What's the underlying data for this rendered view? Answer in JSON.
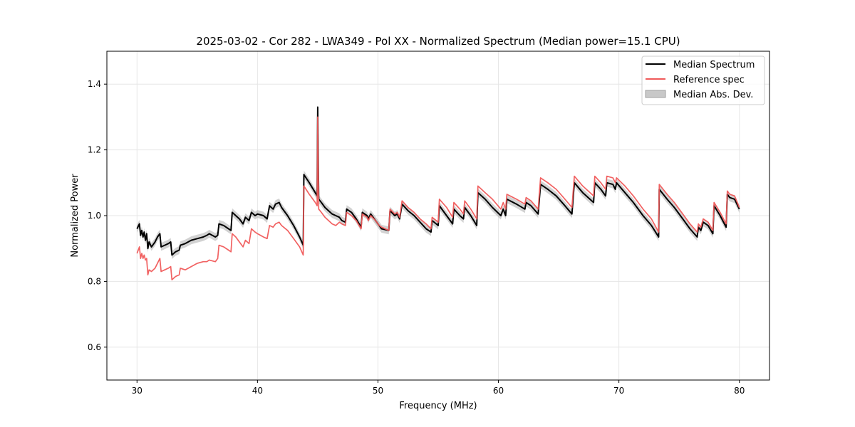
{
  "chart_data": {
    "type": "line",
    "title": "2025-03-02 - Cor 282 - LWA349 - Pol XX - Normalized Spectrum (Median power=15.1 CPU)",
    "xlabel": "Frequency (MHz)",
    "ylabel": "Normalized Power",
    "xlim": [
      27.5,
      82.5
    ],
    "ylim": [
      0.5,
      1.5
    ],
    "xticks": [
      30,
      40,
      50,
      60,
      70,
      80
    ],
    "yticks": [
      0.6,
      0.8,
      1.0,
      1.2,
      1.4
    ],
    "grid": true,
    "legend_position": "top-right",
    "legend": [
      {
        "label": "Median Spectrum",
        "kind": "line",
        "color": "#000000"
      },
      {
        "label": "Reference spec",
        "kind": "line",
        "color": "#f05a5a"
      },
      {
        "label": "Median Abs. Dev.",
        "kind": "patch",
        "color": "#b4b4b4"
      }
    ],
    "series": [
      {
        "name": "Median Spectrum",
        "color": "#000000",
        "points": [
          [
            30.0,
            0.96
          ],
          [
            30.2,
            0.975
          ],
          [
            30.3,
            0.94
          ],
          [
            30.4,
            0.955
          ],
          [
            30.5,
            0.935
          ],
          [
            30.6,
            0.95
          ],
          [
            30.7,
            0.925
          ],
          [
            30.8,
            0.945
          ],
          [
            30.9,
            0.9
          ],
          [
            31.0,
            0.92
          ],
          [
            31.2,
            0.905
          ],
          [
            31.5,
            0.92
          ],
          [
            31.7,
            0.935
          ],
          [
            31.9,
            0.945
          ],
          [
            32.0,
            0.905
          ],
          [
            32.3,
            0.91
          ],
          [
            32.6,
            0.915
          ],
          [
            32.8,
            0.92
          ],
          [
            32.9,
            0.88
          ],
          [
            33.2,
            0.89
          ],
          [
            33.5,
            0.895
          ],
          [
            33.6,
            0.91
          ],
          [
            34.0,
            0.915
          ],
          [
            34.5,
            0.925
          ],
          [
            35.0,
            0.93
          ],
          [
            35.5,
            0.935
          ],
          [
            35.8,
            0.94
          ],
          [
            36.0,
            0.945
          ],
          [
            36.5,
            0.935
          ],
          [
            36.7,
            0.94
          ],
          [
            36.8,
            0.975
          ],
          [
            37.2,
            0.97
          ],
          [
            37.6,
            0.96
          ],
          [
            37.8,
            0.955
          ],
          [
            37.9,
            1.01
          ],
          [
            38.2,
            1.0
          ],
          [
            38.5,
            0.99
          ],
          [
            38.8,
            0.975
          ],
          [
            39.0,
            0.995
          ],
          [
            39.3,
            0.985
          ],
          [
            39.5,
            1.01
          ],
          [
            39.8,
            1.0
          ],
          [
            40.0,
            1.005
          ],
          [
            40.5,
            1.0
          ],
          [
            40.8,
            0.99
          ],
          [
            41.0,
            1.03
          ],
          [
            41.3,
            1.02
          ],
          [
            41.5,
            1.035
          ],
          [
            41.8,
            1.04
          ],
          [
            42.0,
            1.025
          ],
          [
            42.5,
            1.0
          ],
          [
            43.0,
            0.97
          ],
          [
            43.5,
            0.935
          ],
          [
            43.8,
            0.91
          ],
          [
            43.85,
            1.125
          ],
          [
            44.3,
            1.1
          ],
          [
            44.8,
            1.07
          ],
          [
            44.95,
            1.06
          ],
          [
            45.0,
            1.33
          ],
          [
            45.08,
            1.05
          ],
          [
            45.3,
            1.04
          ],
          [
            45.6,
            1.025
          ],
          [
            45.9,
            1.015
          ],
          [
            46.2,
            1.005
          ],
          [
            46.5,
            1.0
          ],
          [
            46.8,
            0.995
          ],
          [
            47.0,
            0.985
          ],
          [
            47.3,
            0.98
          ],
          [
            47.4,
            1.02
          ],
          [
            47.8,
            1.01
          ],
          [
            48.2,
            0.99
          ],
          [
            48.6,
            0.965
          ],
          [
            48.7,
            1.01
          ],
          [
            49.1,
            1.0
          ],
          [
            49.2,
            0.99
          ],
          [
            49.4,
            1.005
          ],
          [
            49.8,
            0.985
          ],
          [
            50.1,
            0.97
          ],
          [
            50.3,
            0.96
          ],
          [
            50.9,
            0.955
          ],
          [
            51.0,
            1.015
          ],
          [
            51.4,
            1.0
          ],
          [
            51.6,
            1.005
          ],
          [
            51.8,
            0.99
          ],
          [
            52.0,
            1.035
          ],
          [
            52.5,
            1.015
          ],
          [
            53.0,
            1.0
          ],
          [
            53.5,
            0.98
          ],
          [
            54.0,
            0.96
          ],
          [
            54.4,
            0.95
          ],
          [
            54.5,
            0.985
          ],
          [
            55.0,
            0.97
          ],
          [
            55.1,
            1.03
          ],
          [
            55.7,
            1.0
          ],
          [
            56.2,
            0.975
          ],
          [
            56.3,
            1.02
          ],
          [
            56.8,
            1.0
          ],
          [
            57.1,
            0.99
          ],
          [
            57.2,
            1.025
          ],
          [
            57.7,
            1.0
          ],
          [
            58.2,
            0.97
          ],
          [
            58.3,
            1.07
          ],
          [
            58.9,
            1.05
          ],
          [
            59.5,
            1.025
          ],
          [
            60.2,
            1.0
          ],
          [
            60.4,
            1.02
          ],
          [
            60.6,
            1.0
          ],
          [
            60.7,
            1.05
          ],
          [
            61.5,
            1.035
          ],
          [
            62.2,
            1.02
          ],
          [
            62.3,
            1.04
          ],
          [
            62.7,
            1.03
          ],
          [
            63.3,
            1.005
          ],
          [
            63.5,
            1.095
          ],
          [
            64.1,
            1.08
          ],
          [
            64.8,
            1.06
          ],
          [
            65.4,
            1.035
          ],
          [
            66.1,
            1.005
          ],
          [
            66.3,
            1.1
          ],
          [
            67.0,
            1.07
          ],
          [
            67.9,
            1.04
          ],
          [
            68.0,
            1.1
          ],
          [
            68.5,
            1.08
          ],
          [
            68.9,
            1.06
          ],
          [
            69.0,
            1.1
          ],
          [
            69.5,
            1.095
          ],
          [
            69.7,
            1.08
          ],
          [
            69.8,
            1.1
          ],
          [
            70.5,
            1.07
          ],
          [
            71.2,
            1.04
          ],
          [
            72.0,
            1.0
          ],
          [
            72.7,
            0.97
          ],
          [
            73.3,
            0.935
          ],
          [
            73.35,
            1.08
          ],
          [
            74.0,
            1.05
          ],
          [
            74.6,
            1.025
          ],
          [
            75.3,
            0.99
          ],
          [
            75.9,
            0.96
          ],
          [
            76.5,
            0.935
          ],
          [
            76.6,
            0.965
          ],
          [
            76.8,
            0.955
          ],
          [
            77.0,
            0.98
          ],
          [
            77.4,
            0.97
          ],
          [
            77.8,
            0.945
          ],
          [
            77.9,
            1.03
          ],
          [
            78.4,
            1.0
          ],
          [
            78.9,
            0.965
          ],
          [
            79.0,
            1.065
          ],
          [
            79.2,
            1.055
          ],
          [
            79.6,
            1.05
          ],
          [
            80.0,
            1.02
          ]
        ]
      },
      {
        "name": "Reference spec",
        "color": "#f05a5a",
        "points": [
          [
            30.0,
            0.885
          ],
          [
            30.2,
            0.905
          ],
          [
            30.3,
            0.87
          ],
          [
            30.4,
            0.885
          ],
          [
            30.5,
            0.87
          ],
          [
            30.6,
            0.88
          ],
          [
            30.7,
            0.865
          ],
          [
            30.8,
            0.87
          ],
          [
            30.9,
            0.82
          ],
          [
            31.0,
            0.835
          ],
          [
            31.2,
            0.83
          ],
          [
            31.5,
            0.84
          ],
          [
            31.7,
            0.855
          ],
          [
            31.9,
            0.87
          ],
          [
            32.0,
            0.83
          ],
          [
            32.3,
            0.835
          ],
          [
            32.6,
            0.84
          ],
          [
            32.8,
            0.845
          ],
          [
            32.9,
            0.805
          ],
          [
            33.2,
            0.815
          ],
          [
            33.5,
            0.82
          ],
          [
            33.6,
            0.84
          ],
          [
            34.0,
            0.835
          ],
          [
            34.5,
            0.845
          ],
          [
            35.0,
            0.855
          ],
          [
            35.5,
            0.86
          ],
          [
            35.8,
            0.86
          ],
          [
            36.0,
            0.865
          ],
          [
            36.5,
            0.86
          ],
          [
            36.7,
            0.87
          ],
          [
            36.8,
            0.91
          ],
          [
            37.2,
            0.905
          ],
          [
            37.6,
            0.895
          ],
          [
            37.8,
            0.89
          ],
          [
            37.9,
            0.945
          ],
          [
            38.2,
            0.935
          ],
          [
            38.5,
            0.92
          ],
          [
            38.8,
            0.905
          ],
          [
            39.0,
            0.925
          ],
          [
            39.3,
            0.915
          ],
          [
            39.5,
            0.96
          ],
          [
            39.8,
            0.95
          ],
          [
            40.0,
            0.945
          ],
          [
            40.5,
            0.935
          ],
          [
            40.8,
            0.93
          ],
          [
            41.0,
            0.97
          ],
          [
            41.3,
            0.965
          ],
          [
            41.5,
            0.975
          ],
          [
            41.8,
            0.98
          ],
          [
            42.0,
            0.97
          ],
          [
            42.5,
            0.955
          ],
          [
            43.0,
            0.93
          ],
          [
            43.5,
            0.905
          ],
          [
            43.8,
            0.88
          ],
          [
            43.85,
            1.09
          ],
          [
            44.3,
            1.065
          ],
          [
            44.8,
            1.04
          ],
          [
            44.95,
            1.03
          ],
          [
            45.0,
            1.3
          ],
          [
            45.08,
            1.02
          ],
          [
            45.3,
            1.01
          ],
          [
            45.6,
            0.995
          ],
          [
            45.9,
            0.985
          ],
          [
            46.2,
            0.975
          ],
          [
            46.5,
            0.97
          ],
          [
            46.8,
            0.98
          ],
          [
            47.0,
            0.975
          ],
          [
            47.3,
            0.97
          ],
          [
            47.4,
            1.01
          ],
          [
            47.8,
            1.0
          ],
          [
            48.2,
            0.985
          ],
          [
            48.6,
            0.96
          ],
          [
            48.7,
            1.005
          ],
          [
            49.1,
            0.995
          ],
          [
            49.2,
            0.985
          ],
          [
            49.4,
            1.0
          ],
          [
            49.8,
            0.985
          ],
          [
            50.1,
            0.97
          ],
          [
            50.3,
            0.965
          ],
          [
            50.9,
            0.955
          ],
          [
            51.0,
            1.02
          ],
          [
            51.4,
            1.005
          ],
          [
            51.6,
            1.01
          ],
          [
            51.8,
            0.995
          ],
          [
            52.0,
            1.045
          ],
          [
            52.5,
            1.025
          ],
          [
            53.0,
            1.01
          ],
          [
            53.5,
            0.99
          ],
          [
            54.0,
            0.975
          ],
          [
            54.4,
            0.96
          ],
          [
            54.5,
            0.995
          ],
          [
            55.0,
            0.98
          ],
          [
            55.1,
            1.05
          ],
          [
            55.7,
            1.025
          ],
          [
            56.2,
            0.995
          ],
          [
            56.3,
            1.04
          ],
          [
            56.8,
            1.02
          ],
          [
            57.1,
            1.005
          ],
          [
            57.2,
            1.045
          ],
          [
            57.7,
            1.02
          ],
          [
            58.2,
            0.99
          ],
          [
            58.3,
            1.09
          ],
          [
            58.9,
            1.07
          ],
          [
            59.5,
            1.05
          ],
          [
            60.2,
            1.02
          ],
          [
            60.4,
            1.04
          ],
          [
            60.6,
            1.02
          ],
          [
            60.7,
            1.065
          ],
          [
            61.5,
            1.05
          ],
          [
            62.2,
            1.035
          ],
          [
            62.3,
            1.055
          ],
          [
            62.7,
            1.045
          ],
          [
            63.3,
            1.02
          ],
          [
            63.5,
            1.115
          ],
          [
            64.1,
            1.1
          ],
          [
            64.8,
            1.08
          ],
          [
            65.4,
            1.055
          ],
          [
            66.1,
            1.025
          ],
          [
            66.3,
            1.12
          ],
          [
            67.0,
            1.09
          ],
          [
            67.9,
            1.06
          ],
          [
            68.0,
            1.12
          ],
          [
            68.5,
            1.1
          ],
          [
            68.9,
            1.08
          ],
          [
            69.0,
            1.12
          ],
          [
            69.5,
            1.115
          ],
          [
            69.7,
            1.1
          ],
          [
            69.8,
            1.115
          ],
          [
            70.5,
            1.09
          ],
          [
            71.2,
            1.06
          ],
          [
            72.0,
            1.02
          ],
          [
            72.7,
            0.99
          ],
          [
            73.3,
            0.95
          ],
          [
            73.35,
            1.095
          ],
          [
            74.0,
            1.065
          ],
          [
            74.6,
            1.04
          ],
          [
            75.3,
            1.005
          ],
          [
            75.9,
            0.975
          ],
          [
            76.5,
            0.95
          ],
          [
            76.6,
            0.975
          ],
          [
            76.8,
            0.965
          ],
          [
            77.0,
            0.99
          ],
          [
            77.4,
            0.98
          ],
          [
            77.8,
            0.955
          ],
          [
            77.9,
            1.04
          ],
          [
            78.4,
            1.01
          ],
          [
            78.9,
            0.975
          ],
          [
            79.0,
            1.075
          ],
          [
            79.2,
            1.065
          ],
          [
            79.6,
            1.06
          ],
          [
            80.0,
            1.025
          ]
        ]
      }
    ],
    "mad_band_halfwidth": 0.012
  }
}
